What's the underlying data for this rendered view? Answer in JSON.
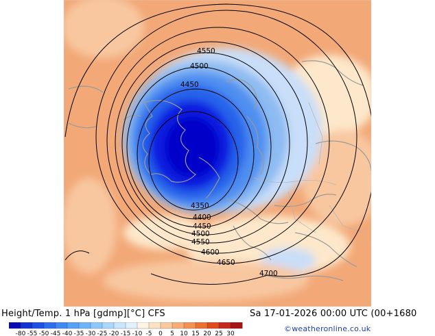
{
  "header": {
    "title_left": "Height/Temp. 1 hPa [gdmp][°C] CFS",
    "title_right": "Sa 17-01-2026 00:00 UTC (00+1680",
    "credit": "©weatheronline.co.uk"
  },
  "colors": {
    "background_warm": "#f2a877",
    "warm_light": "#f8c7a0",
    "cream": "#fde8cb",
    "cold_1": "#c9def8",
    "cold_2": "#8dbbf2",
    "cold_3": "#4f8ff0",
    "cold_4": "#2563ea",
    "cold_5": "#0a1ee0",
    "cold_6": "#0000c8",
    "contour": "#000000",
    "coastline": "#9a9a9a"
  },
  "contours": [
    {
      "value": 4350,
      "label": "4350"
    },
    {
      "value": 4400,
      "label": "4400"
    },
    {
      "value": 4450,
      "label": "4450"
    },
    {
      "value": 4500,
      "label": "4500"
    },
    {
      "value": 4550,
      "label": "4550"
    },
    {
      "value": 4600,
      "label": "4600"
    },
    {
      "value": 4650,
      "label": "4650"
    },
    {
      "value": 4700,
      "label": "4700"
    }
  ],
  "colorbar": {
    "ticks": [
      "-80",
      "-55",
      "-50",
      "-45",
      "-40",
      "-35",
      "-30",
      "-25",
      "-20",
      "-15",
      "-10",
      "-5",
      "0",
      "5",
      "10",
      "15",
      "20",
      "25",
      "30"
    ],
    "colors": [
      "#0a0ab4",
      "#1432d2",
      "#1e50e6",
      "#2d6ef0",
      "#4088f5",
      "#55a0f8",
      "#6eb4fa",
      "#8cc8fc",
      "#aad8fd",
      "#c8e6fe",
      "#e2f1ff",
      "#fff5e6",
      "#fde2c4",
      "#fbc99e",
      "#f8ac78",
      "#f39052",
      "#ee7030",
      "#e24a1a",
      "#c8281a",
      "#a81414"
    ]
  }
}
